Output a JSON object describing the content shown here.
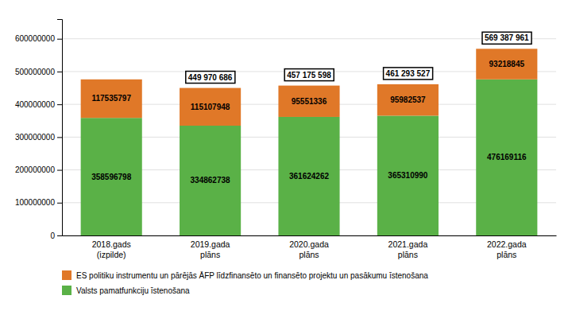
{
  "chart_data": {
    "type": "bar",
    "stacked": true,
    "categories": [
      "2018.gads\n(izpilde)",
      "2019.gada\nplāns",
      "2020.gada\nplāns",
      "2021.gada\nplāns",
      "2022.gada\nplāns"
    ],
    "series": [
      {
        "name": "Valsts pamatfunkciju īstenošana",
        "color": "#5ab147",
        "values": [
          358596798,
          334862738,
          361624262,
          365310990,
          476169116
        ]
      },
      {
        "name": "ES politiku instrumentu un pārējās ĀFP līdzfinansēto un finansēto projektu un pasākumu īstenošana",
        "color": "#e07828",
        "values": [
          117535797,
          115107948,
          95551336,
          95982537,
          93218845
        ]
      }
    ],
    "annotations": [
      {
        "x": "2019.gada\nplāns",
        "value": 449970686,
        "text": "449 970 686"
      },
      {
        "x": "2020.gada\nplāns",
        "value": 457175598,
        "text": "457 175 598"
      },
      {
        "x": "2021.gada\nplāns",
        "value": 461293527,
        "text": "461 293 527"
      },
      {
        "x": "2022.gada\nplāns",
        "value": 569387961,
        "text": "569 387 961"
      }
    ],
    "ylim": [
      0,
      660000000
    ],
    "yticks": [
      0,
      100000000,
      200000000,
      300000000,
      400000000,
      500000000,
      600000000
    ],
    "grid": true,
    "data_labels": true,
    "legend": "bottom"
  }
}
